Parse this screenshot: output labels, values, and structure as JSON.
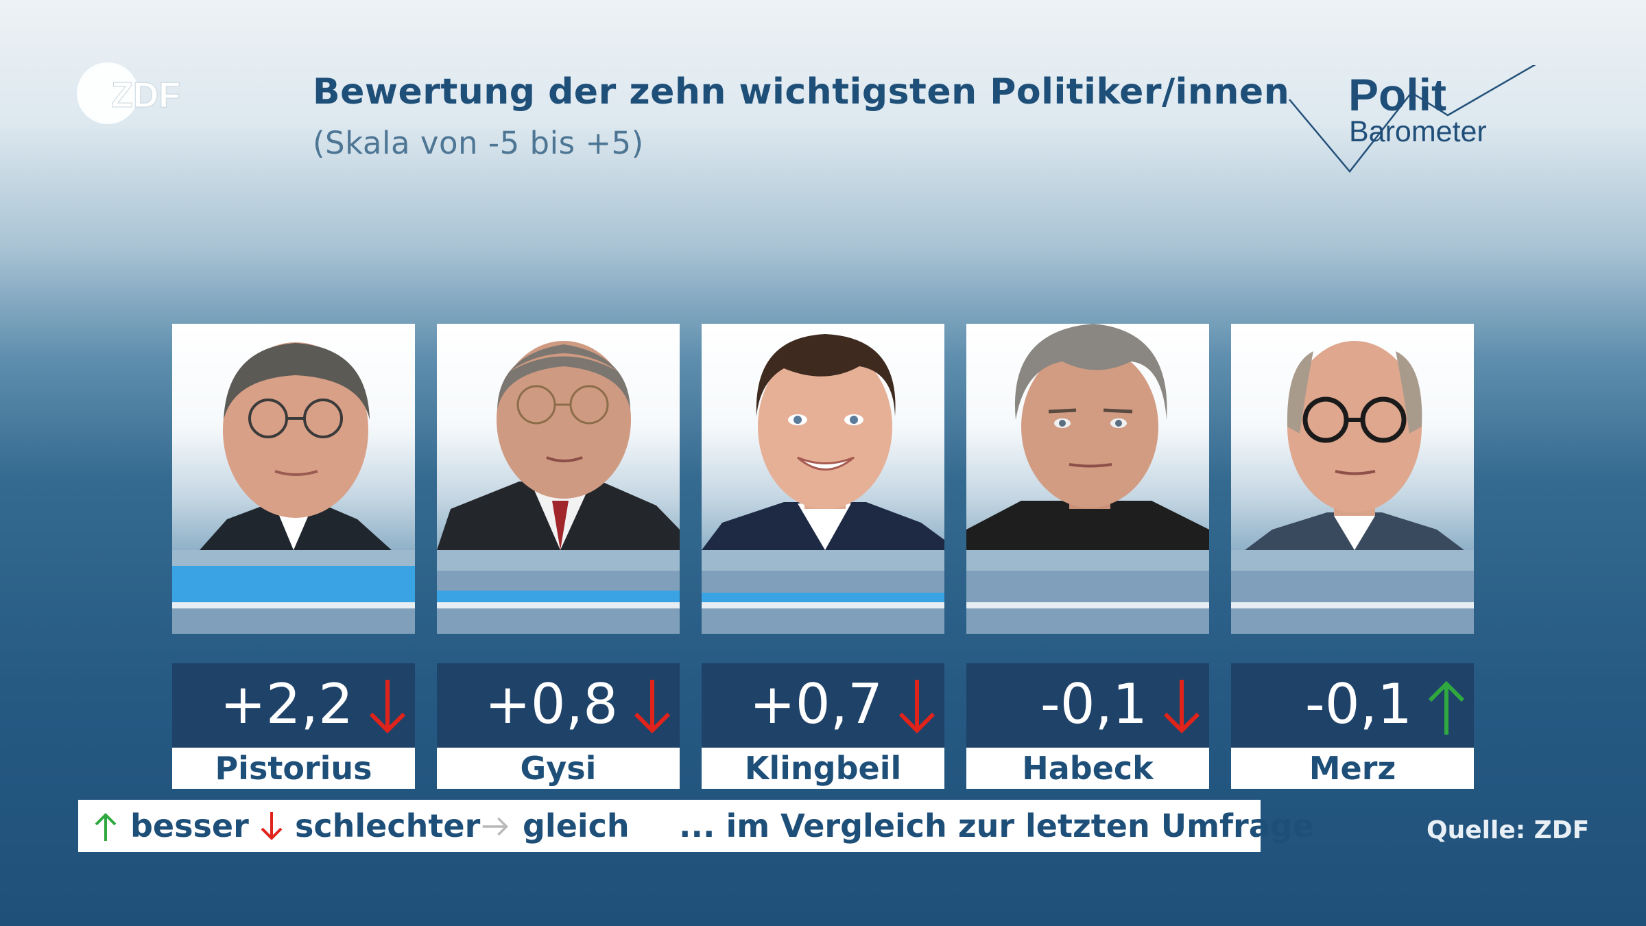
{
  "brand": {
    "logo_text": "ZDF",
    "pb_word1": "Polit",
    "pb_word2": "Barometer"
  },
  "header": {
    "title": "Bewertung der zehn wichtigsten Politiker/innen",
    "subtitle": "(Skala von -5 bis +5)"
  },
  "colors": {
    "bar": "#3aa3e3",
    "value_box": "#1f4269",
    "title": "#1e4f79",
    "up": "#2fa83f",
    "down": "#e0231b",
    "same": "#b9b9b9"
  },
  "chart_data": {
    "type": "bar",
    "title": "Bewertung der zehn wichtigsten Politiker/innen",
    "subtitle": "(Skala von -5 bis +5)",
    "ylim": [
      -5,
      5
    ],
    "categories": [
      "Pistorius",
      "Gysi",
      "Klingbeil",
      "Habeck",
      "Merz"
    ],
    "values": [
      2.2,
      0.8,
      0.7,
      -0.1,
      -0.1
    ],
    "labels": [
      "+2,2",
      "+0,8",
      "+0,7",
      "-0,1",
      "-0,1"
    ],
    "trends": [
      "down",
      "down",
      "down",
      "down",
      "up"
    ]
  },
  "legend": {
    "besser": "besser",
    "schlechter": "schlechter",
    "gleich": "gleich",
    "note": "... im Vergleich zur letzten Umfrage"
  },
  "source": "Quelle: ZDF"
}
